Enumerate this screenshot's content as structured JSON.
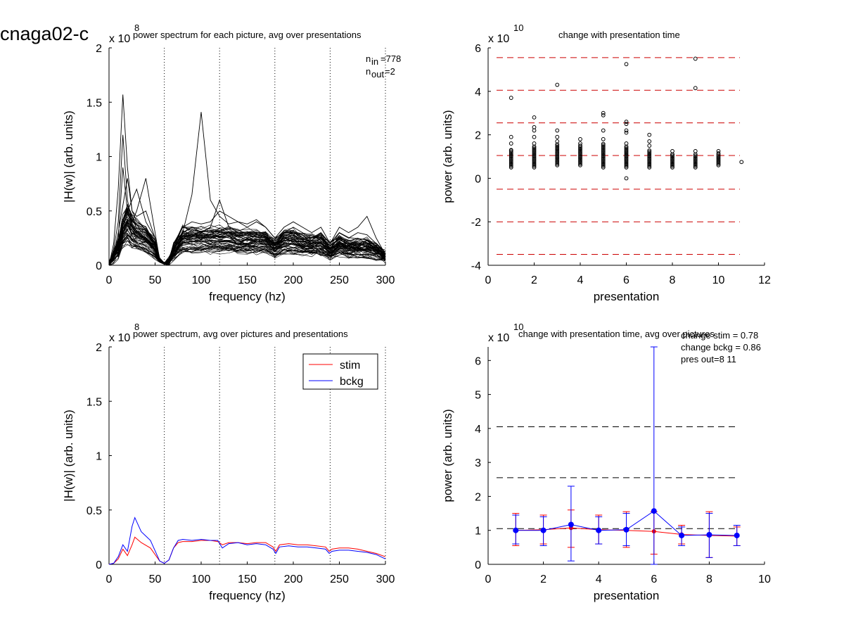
{
  "figure_title": "cnaga02-c",
  "colors": {
    "stim": "#ff0000",
    "bckg": "#0000ff",
    "ref": "#cc0000",
    "axis": "#000000"
  },
  "chart_data": [
    {
      "id": "p1",
      "type": "line",
      "title": "power spectrum for each picture, avg over presentations",
      "xlabel": "frequency (hz)",
      "ylabel": "|H(w)| (arb. units)",
      "exponent": "x 10",
      "exponent_power": "8",
      "xlim": [
        0,
        300
      ],
      "ylim": [
        0,
        2
      ],
      "xticks": [
        "0",
        "50",
        "100",
        "150",
        "200",
        "250",
        "300"
      ],
      "yticks": [
        "0",
        "0.5",
        "1",
        "1.5",
        "2"
      ],
      "vlines": [
        60,
        120,
        180,
        240,
        300
      ],
      "n_in": "778",
      "n_out": "2",
      "series": [
        {
          "x": [
            0,
            5,
            10,
            15,
            20,
            25,
            30,
            40,
            50,
            55,
            60,
            65,
            70,
            80,
            90,
            100,
            110,
            120,
            130,
            140,
            150,
            160,
            170,
            180,
            190,
            200,
            210,
            220,
            230,
            240,
            250,
            260,
            270,
            280,
            290,
            300
          ],
          "y": [
            0,
            0.2,
            0.7,
            1.57,
            0.9,
            0.5,
            0.45,
            0.5,
            0.25,
            0.05,
            0.01,
            0.05,
            0.15,
            0.3,
            0.65,
            1.41,
            0.6,
            0.45,
            0.38,
            0.4,
            0.35,
            0.4,
            0.35,
            0.25,
            0.3,
            0.35,
            0.3,
            0.25,
            0.3,
            0.2,
            0.3,
            0.25,
            0.3,
            0.28,
            0.2,
            0.12
          ]
        },
        {
          "x": [
            0,
            5,
            10,
            15,
            20,
            25,
            30,
            40,
            50,
            55,
            60,
            65,
            70,
            80,
            90,
            100,
            110,
            120,
            130,
            140,
            150,
            160,
            170,
            180,
            190,
            200,
            210,
            220,
            230,
            240,
            250,
            260,
            270,
            280,
            290,
            300
          ],
          "y": [
            0,
            0.15,
            0.4,
            1.2,
            0.6,
            0.4,
            0.5,
            0.8,
            0.3,
            0.05,
            0.01,
            0.04,
            0.2,
            0.3,
            0.35,
            0.3,
            0.35,
            0.6,
            0.35,
            0.3,
            0.3,
            0.3,
            0.3,
            0.2,
            0.3,
            0.3,
            0.28,
            0.2,
            0.25,
            0.22,
            0.25,
            0.22,
            0.25,
            0.2,
            0.2,
            0.1
          ]
        },
        {
          "x": [
            0,
            5,
            10,
            15,
            20,
            25,
            30,
            40,
            50,
            55,
            60,
            65,
            70,
            80,
            90,
            100,
            110,
            120,
            130,
            140,
            150,
            160,
            170,
            180,
            190,
            200,
            210,
            220,
            230,
            240,
            250,
            260,
            270,
            280,
            290,
            300
          ],
          "y": [
            0,
            0.1,
            0.3,
            0.55,
            0.8,
            0.5,
            0.4,
            0.35,
            0.2,
            0.05,
            0.01,
            0.04,
            0.15,
            0.25,
            0.28,
            0.3,
            0.28,
            0.3,
            0.3,
            0.28,
            0.25,
            0.28,
            0.25,
            0.18,
            0.25,
            0.22,
            0.22,
            0.2,
            0.2,
            0.15,
            0.2,
            0.18,
            0.2,
            0.2,
            0.15,
            0.1
          ]
        },
        {
          "x": [
            0,
            5,
            10,
            15,
            20,
            25,
            30,
            40,
            50,
            55,
            60,
            65,
            70,
            80,
            90,
            100,
            110,
            120,
            130,
            140,
            150,
            160,
            170,
            180,
            190,
            200,
            210,
            220,
            230,
            240,
            250,
            260,
            270,
            280,
            290,
            300
          ],
          "y": [
            0,
            0.08,
            0.2,
            0.3,
            0.4,
            0.35,
            0.3,
            0.25,
            0.15,
            0.04,
            0.01,
            0.03,
            0.1,
            0.2,
            0.22,
            0.22,
            0.2,
            0.22,
            0.22,
            0.2,
            0.2,
            0.2,
            0.2,
            0.15,
            0.2,
            0.2,
            0.18,
            0.18,
            0.18,
            0.12,
            0.18,
            0.15,
            0.15,
            0.15,
            0.12,
            0.08
          ]
        },
        {
          "x": [
            0,
            5,
            10,
            15,
            20,
            25,
            30,
            40,
            50,
            55,
            60,
            65,
            70,
            80,
            90,
            100,
            110,
            120,
            130,
            140,
            150,
            160,
            170,
            180,
            190,
            200,
            210,
            220,
            230,
            240,
            250,
            260,
            270,
            280,
            290,
            300
          ],
          "y": [
            0,
            0.05,
            0.1,
            0.2,
            0.25,
            0.2,
            0.18,
            0.15,
            0.1,
            0.03,
            0.01,
            0.02,
            0.08,
            0.15,
            0.15,
            0.15,
            0.15,
            0.15,
            0.15,
            0.14,
            0.14,
            0.14,
            0.14,
            0.1,
            0.14,
            0.14,
            0.12,
            0.12,
            0.12,
            0.08,
            0.12,
            0.1,
            0.1,
            0.1,
            0.08,
            0.05
          ]
        },
        {
          "x": [
            0,
            5,
            10,
            15,
            20,
            25,
            30,
            40,
            50,
            55,
            60,
            65,
            70,
            80,
            90,
            100,
            110,
            120,
            130,
            140,
            150,
            160,
            170,
            180,
            190,
            200,
            210,
            220,
            230,
            240,
            250,
            260,
            270,
            280,
            290,
            300
          ],
          "y": [
            0,
            0.1,
            0.25,
            0.9,
            0.5,
            0.6,
            0.7,
            0.4,
            0.25,
            0.05,
            0.01,
            0.05,
            0.2,
            0.35,
            0.4,
            0.38,
            0.4,
            0.5,
            0.45,
            0.4,
            0.38,
            0.42,
            0.35,
            0.25,
            0.35,
            0.4,
            0.35,
            0.3,
            0.35,
            0.2,
            0.35,
            0.3,
            0.35,
            0.45,
            0.25,
            0.1
          ]
        }
      ]
    },
    {
      "id": "p2",
      "type": "scatter",
      "title": "change with presentation time",
      "xlabel": "presentation",
      "ylabel": "power (arb. units)",
      "exponent": "x 10",
      "exponent_power": "10",
      "xlim": [
        0,
        12
      ],
      "ylim": [
        -4,
        6
      ],
      "xticks": [
        "0",
        "2",
        "4",
        "6",
        "8",
        "10",
        "12"
      ],
      "yticks": [
        "-4",
        "-2",
        "0",
        "2",
        "4",
        "6"
      ],
      "hlines": [
        5.55,
        4.05,
        2.55,
        1.05,
        -0.5,
        -2.0,
        -3.5
      ],
      "points": [
        {
          "x": 1,
          "y": 3.7
        },
        {
          "x": 1,
          "y": 1.9
        },
        {
          "x": 1,
          "y": 1.6
        },
        {
          "x": 1,
          "y": 1.3
        },
        {
          "x": 2,
          "y": 2.8
        },
        {
          "x": 2,
          "y": 2.35
        },
        {
          "x": 2,
          "y": 2.2
        },
        {
          "x": 2,
          "y": 1.9
        },
        {
          "x": 2,
          "y": 1.6
        },
        {
          "x": 3,
          "y": 4.3
        },
        {
          "x": 3,
          "y": 2.2
        },
        {
          "x": 3,
          "y": 1.9
        },
        {
          "x": 3,
          "y": 1.7
        },
        {
          "x": 4,
          "y": 1.8
        },
        {
          "x": 4,
          "y": 1.6
        },
        {
          "x": 5,
          "y": 3.0
        },
        {
          "x": 5,
          "y": 2.9
        },
        {
          "x": 5,
          "y": 2.2
        },
        {
          "x": 5,
          "y": 1.8
        },
        {
          "x": 6,
          "y": 5.25
        },
        {
          "x": 6,
          "y": 2.6
        },
        {
          "x": 6,
          "y": 2.5
        },
        {
          "x": 6,
          "y": 2.2
        },
        {
          "x": 6,
          "y": 2.1
        },
        {
          "x": 6,
          "y": 1.6
        },
        {
          "x": 6,
          "y": 0.0
        },
        {
          "x": 7,
          "y": 2.0
        },
        {
          "x": 7,
          "y": 1.7
        },
        {
          "x": 7,
          "y": 1.5
        },
        {
          "x": 8,
          "y": 1.25
        },
        {
          "x": 8,
          "y": 1.1
        },
        {
          "x": 9,
          "y": 5.5
        },
        {
          "x": 9,
          "y": 4.15
        },
        {
          "x": 9,
          "y": 1.25
        },
        {
          "x": 10,
          "y": 1.25
        },
        {
          "x": 10,
          "y": 1.15
        },
        {
          "x": 11,
          "y": 0.75
        }
      ],
      "clusters": [
        {
          "x": 1,
          "from": 0.5,
          "to": 1.3
        },
        {
          "x": 2,
          "from": 0.5,
          "to": 1.5
        },
        {
          "x": 3,
          "from": 0.6,
          "to": 1.6
        },
        {
          "x": 4,
          "from": 0.6,
          "to": 1.5
        },
        {
          "x": 5,
          "from": 0.5,
          "to": 1.6
        },
        {
          "x": 6,
          "from": 0.5,
          "to": 1.5
        },
        {
          "x": 7,
          "from": 0.5,
          "to": 1.3
        },
        {
          "x": 8,
          "from": 0.5,
          "to": 1.1
        },
        {
          "x": 9,
          "from": 0.5,
          "to": 1.1
        },
        {
          "x": 10,
          "from": 0.6,
          "to": 1.1
        }
      ]
    },
    {
      "id": "p3",
      "type": "line",
      "title": "power spectrum, avg over pictures and presentations",
      "xlabel": "frequency (hz)",
      "ylabel": "|H(w)| (arb. units)",
      "exponent": "x 10",
      "exponent_power": "8",
      "xlim": [
        0,
        300
      ],
      "ylim": [
        0,
        2
      ],
      "xticks": [
        "0",
        "50",
        "100",
        "150",
        "200",
        "250",
        "300"
      ],
      "yticks": [
        "0",
        "0.5",
        "1",
        "1.5",
        "2"
      ],
      "vlines": [
        60,
        120,
        180,
        240,
        300
      ],
      "legend": [
        "stim",
        "bckg"
      ],
      "legend_position": "top-right",
      "x": [
        0,
        5,
        10,
        15,
        20,
        25,
        28,
        35,
        45,
        55,
        60,
        65,
        70,
        75,
        80,
        90,
        100,
        110,
        118,
        123,
        130,
        140,
        150,
        160,
        170,
        178,
        181,
        185,
        195,
        205,
        215,
        225,
        235,
        239,
        242,
        250,
        260,
        270,
        280,
        290,
        300
      ],
      "series": [
        {
          "name": "stim",
          "values": [
            0,
            0.01,
            0.05,
            0.14,
            0.08,
            0.18,
            0.25,
            0.2,
            0.15,
            0.03,
            0.01,
            0.04,
            0.15,
            0.2,
            0.21,
            0.21,
            0.22,
            0.22,
            0.21,
            0.18,
            0.2,
            0.2,
            0.19,
            0.2,
            0.2,
            0.16,
            0.12,
            0.18,
            0.19,
            0.18,
            0.18,
            0.17,
            0.16,
            0.12,
            0.14,
            0.15,
            0.15,
            0.14,
            0.12,
            0.1,
            0.07
          ]
        },
        {
          "name": "bckg",
          "values": [
            0,
            0.01,
            0.07,
            0.18,
            0.12,
            0.35,
            0.43,
            0.3,
            0.22,
            0.03,
            0.01,
            0.04,
            0.15,
            0.22,
            0.23,
            0.22,
            0.23,
            0.22,
            0.22,
            0.15,
            0.19,
            0.2,
            0.18,
            0.19,
            0.18,
            0.14,
            0.1,
            0.16,
            0.17,
            0.16,
            0.16,
            0.15,
            0.14,
            0.1,
            0.12,
            0.13,
            0.13,
            0.12,
            0.11,
            0.09,
            0.05
          ]
        }
      ]
    },
    {
      "id": "p4",
      "type": "line",
      "title": "change with presentation time, avg over pictures",
      "xlabel": "presentation",
      "ylabel": "power (arb. units)",
      "exponent": "x 10",
      "exponent_power": "10",
      "xlim": [
        0,
        10
      ],
      "ylim": [
        0,
        6.4
      ],
      "xticks": [
        "0",
        "2",
        "4",
        "6",
        "8",
        "10"
      ],
      "yticks": [
        "0",
        "1",
        "2",
        "3",
        "4",
        "5",
        "6"
      ],
      "hlines": [
        4.05,
        2.55,
        1.05
      ],
      "annotations": [
        "change stim = 0.78",
        "change bckg = 0.86",
        "pres out=8 11"
      ],
      "x": [
        1,
        2,
        3,
        4,
        5,
        6,
        7,
        8,
        9
      ],
      "series": [
        {
          "name": "stim",
          "values": [
            1.0,
            1.02,
            1.07,
            1.02,
            1.0,
            0.97,
            0.88,
            0.85,
            0.83
          ],
          "err_low": [
            0.55,
            0.6,
            0.5,
            0.6,
            0.5,
            0.3,
            0.6,
            0.2,
            0.55
          ],
          "err_high": [
            1.5,
            1.45,
            1.6,
            1.45,
            1.55,
            1.55,
            1.15,
            1.55,
            1.1
          ]
        },
        {
          "name": "bckg",
          "values": [
            1.0,
            1.0,
            1.17,
            1.0,
            1.02,
            1.57,
            0.85,
            0.87,
            0.85
          ],
          "err_low": [
            0.6,
            0.55,
            0.1,
            0.6,
            0.55,
            0.0,
            0.55,
            0.2,
            0.55
          ],
          "err_high": [
            1.45,
            1.4,
            2.3,
            1.4,
            1.5,
            6.4,
            1.1,
            1.5,
            1.15
          ]
        }
      ]
    }
  ]
}
